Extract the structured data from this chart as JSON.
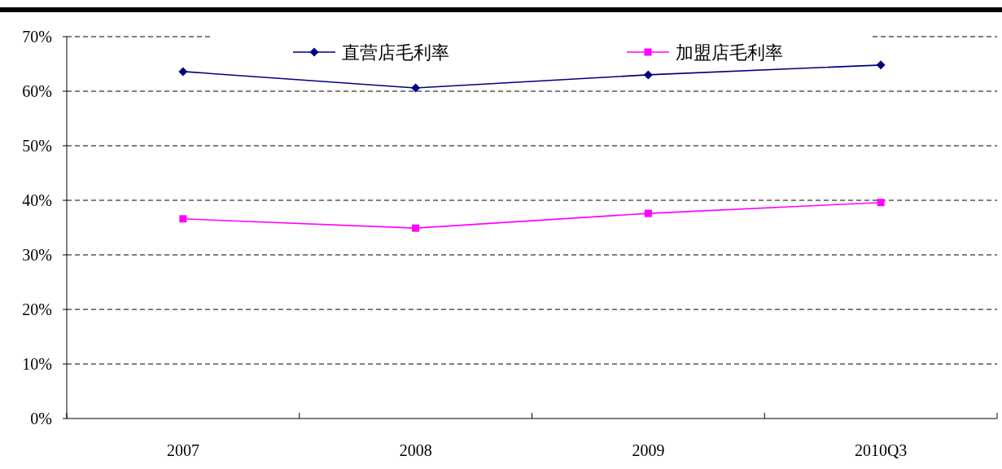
{
  "chart_data": {
    "type": "line",
    "categories": [
      "2007",
      "2008",
      "2009",
      "2010Q3"
    ],
    "series": [
      {
        "name": "直营店毛利率",
        "color": "#000080",
        "marker": "diamond",
        "values": [
          63.6,
          60.6,
          63.0,
          64.8
        ]
      },
      {
        "name": "加盟店毛利率",
        "color": "#ff00ff",
        "marker": "square",
        "values": [
          36.6,
          34.9,
          37.6,
          39.6
        ]
      }
    ],
    "ylim": [
      0,
      70
    ],
    "yticks": [
      {
        "value": 0,
        "label": "0%"
      },
      {
        "value": 10,
        "label": "10%"
      },
      {
        "value": 20,
        "label": "20%"
      },
      {
        "value": 30,
        "label": "30%"
      },
      {
        "value": 40,
        "label": "40%"
      },
      {
        "value": 50,
        "label": "50%"
      },
      {
        "value": 60,
        "label": "60%"
      },
      {
        "value": 70,
        "label": "70%"
      }
    ],
    "grid": "y",
    "legend": "top",
    "line_style": "solid"
  }
}
